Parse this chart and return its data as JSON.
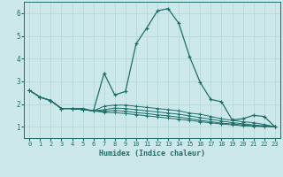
{
  "xlabel": "Humidex (Indice chaleur)",
  "xlim": [
    -0.5,
    23.5
  ],
  "ylim": [
    0.5,
    6.5
  ],
  "yticks": [
    1,
    2,
    3,
    4,
    5,
    6
  ],
  "xticks": [
    0,
    1,
    2,
    3,
    4,
    5,
    6,
    7,
    8,
    9,
    10,
    11,
    12,
    13,
    14,
    15,
    16,
    17,
    18,
    19,
    20,
    21,
    22,
    23
  ],
  "bg_color": "#cde8ea",
  "grid_color": "#b8d8da",
  "line_color": "#1e6e6a",
  "series": [
    [
      2.6,
      2.3,
      2.15,
      1.8,
      1.8,
      1.8,
      1.7,
      3.35,
      2.4,
      2.55,
      4.65,
      5.35,
      6.1,
      6.2,
      5.55,
      4.1,
      2.95,
      2.2,
      2.1,
      1.3,
      1.35,
      1.5,
      1.45,
      1.0
    ],
    [
      2.6,
      2.3,
      2.15,
      1.8,
      1.8,
      1.75,
      1.7,
      1.9,
      1.95,
      1.95,
      1.9,
      1.85,
      1.8,
      1.75,
      1.7,
      1.6,
      1.55,
      1.45,
      1.35,
      1.28,
      1.22,
      1.18,
      1.1,
      1.0
    ],
    [
      2.6,
      2.3,
      2.15,
      1.8,
      1.8,
      1.75,
      1.7,
      1.75,
      1.82,
      1.8,
      1.75,
      1.7,
      1.65,
      1.6,
      1.55,
      1.48,
      1.4,
      1.33,
      1.25,
      1.18,
      1.13,
      1.08,
      1.04,
      1.0
    ],
    [
      2.6,
      2.3,
      2.15,
      1.8,
      1.8,
      1.75,
      1.7,
      1.68,
      1.72,
      1.68,
      1.62,
      1.58,
      1.52,
      1.48,
      1.42,
      1.36,
      1.28,
      1.22,
      1.16,
      1.12,
      1.08,
      1.04,
      1.02,
      1.0
    ],
    [
      2.6,
      2.3,
      2.15,
      1.8,
      1.8,
      1.75,
      1.7,
      1.63,
      1.62,
      1.58,
      1.53,
      1.48,
      1.43,
      1.38,
      1.33,
      1.28,
      1.22,
      1.17,
      1.12,
      1.08,
      1.04,
      1.02,
      1.0,
      1.0
    ]
  ]
}
